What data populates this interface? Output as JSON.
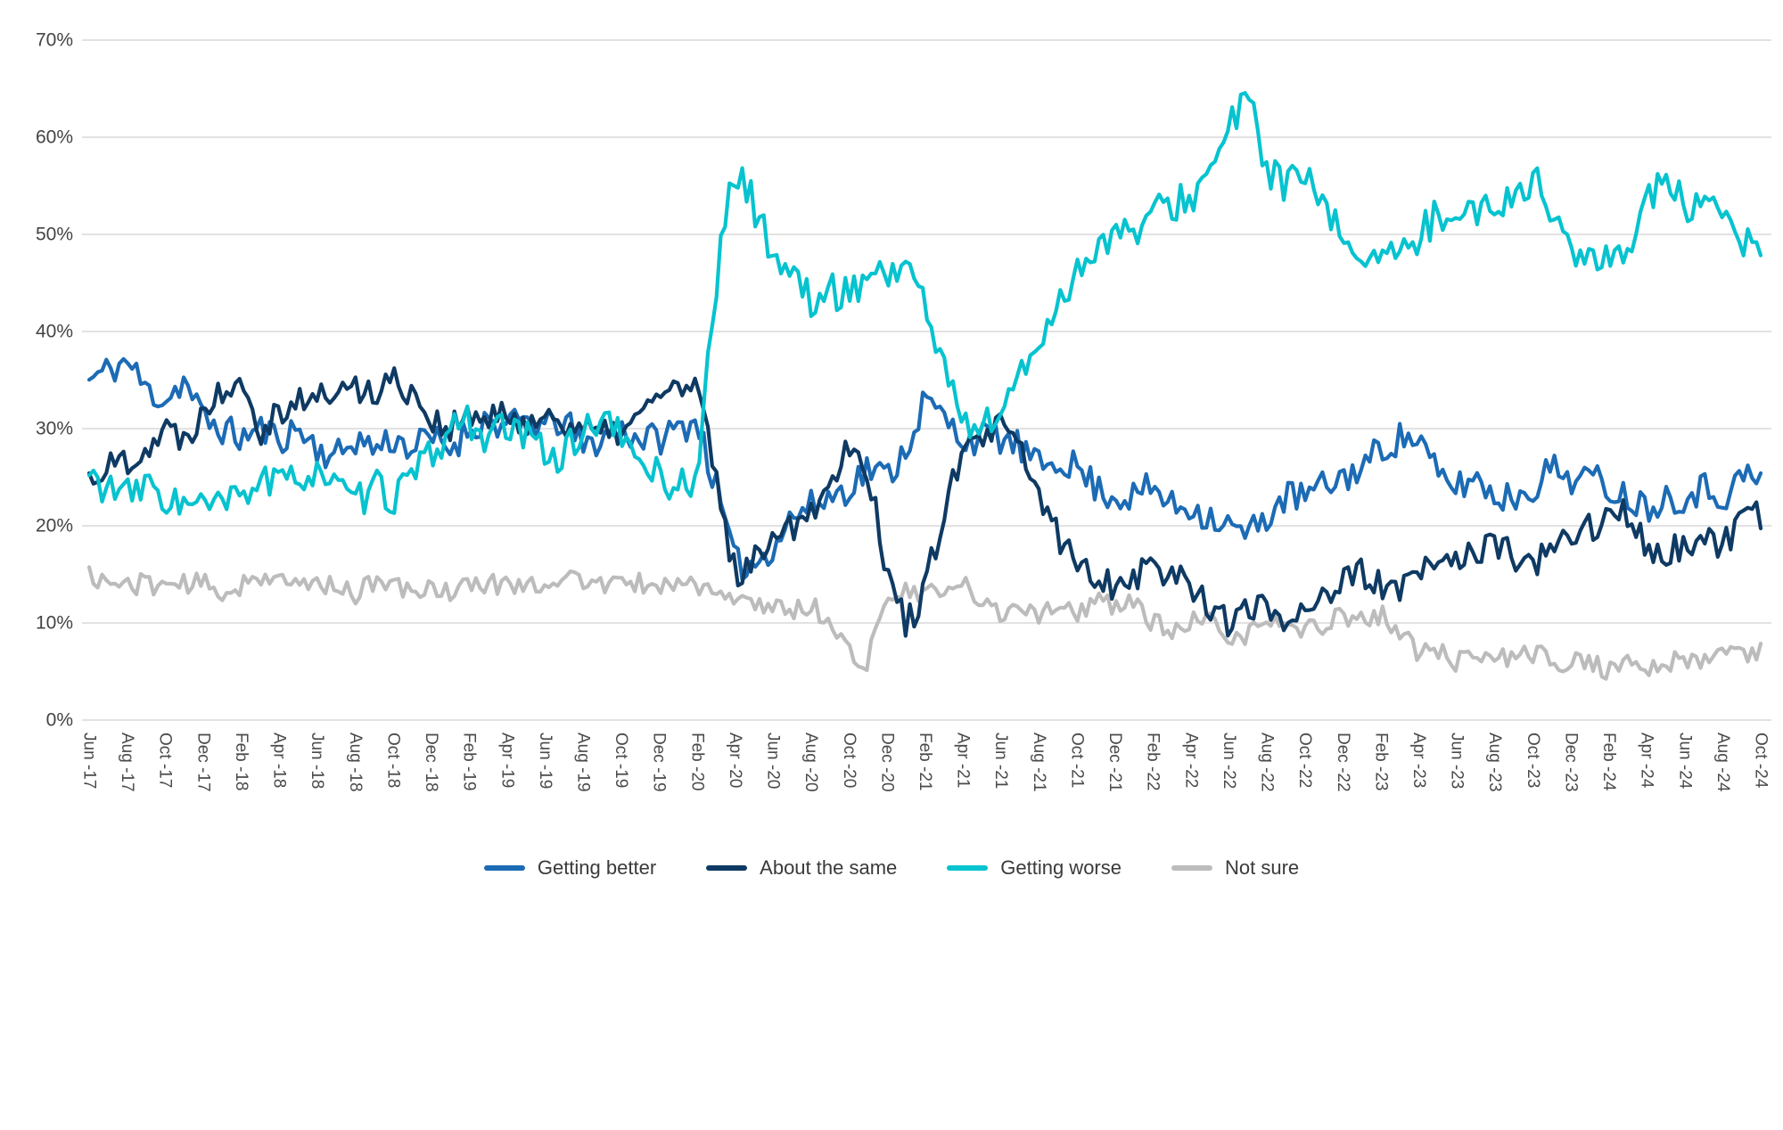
{
  "chart_data": {
    "type": "line",
    "title": "",
    "xlabel": "",
    "ylabel": "",
    "ylim": [
      0,
      70
    ],
    "y_tick_step": 10,
    "y_ticks": [
      "0%",
      "10%",
      "20%",
      "30%",
      "40%",
      "50%",
      "60%",
      "70%"
    ],
    "grid": "horizontal",
    "legend_position": "bottom",
    "x_unit": "month (Jun-2017 to Oct-2024, weekly survey upsampled)",
    "x_tick_labels": [
      "Jun -17",
      "Aug -17",
      "Oct -17",
      "Dec -17",
      "Feb -18",
      "Apr -18",
      "Jun -18",
      "Aug -18",
      "Oct -18",
      "Dec -18",
      "Feb -19",
      "Apr -19",
      "Jun -19",
      "Aug -19",
      "Oct -19",
      "Dec -19",
      "Feb -20",
      "Apr -20",
      "Jun -20",
      "Aug -20",
      "Oct -20",
      "Dec -20",
      "Feb -21",
      "Apr -21",
      "Jun -21",
      "Aug -21",
      "Oct -21",
      "Dec -21",
      "Feb -22",
      "Apr -22",
      "Jun -22",
      "Aug -22",
      "Oct -22",
      "Dec -22",
      "Feb -23",
      "Apr -23",
      "Jun -23",
      "Aug -23",
      "Oct -23",
      "Dec -23",
      "Feb -24",
      "Apr -24",
      "Jun -24",
      "Aug -24",
      "Oct -24"
    ],
    "x_tick_month_step": 2,
    "series": [
      {
        "name": "Getting better",
        "color": "#1c6bb5",
        "jitter": 1.7,
        "seed": 11,
        "monthly_values": [
          35,
          36,
          37,
          34,
          33,
          35,
          31,
          30,
          29,
          30,
          29,
          30,
          28,
          27,
          29,
          28,
          29,
          28,
          29,
          28,
          30,
          31,
          30,
          31,
          30,
          31,
          28,
          29,
          30,
          29,
          29,
          30,
          31,
          24,
          16,
          16,
          18,
          21,
          22,
          23,
          24,
          26,
          25,
          28,
          33,
          31,
          29,
          29,
          29,
          28,
          26,
          27,
          26,
          24,
          23,
          23,
          24,
          22,
          22,
          21,
          20,
          19,
          21,
          23,
          23,
          24,
          25,
          26,
          28,
          29,
          29,
          25,
          24,
          25,
          23,
          23,
          24,
          26,
          25,
          25,
          24,
          23,
          22,
          23,
          23,
          24,
          23,
          25,
          25
        ]
      },
      {
        "name": "About the same",
        "color": "#0e3a63",
        "jitter": 1.7,
        "seed": 22,
        "monthly_values": [
          25,
          26,
          27,
          28,
          30,
          29,
          32,
          34,
          36,
          30,
          32,
          33,
          33,
          34,
          34,
          34,
          35,
          34,
          31,
          30,
          31,
          31,
          31,
          31,
          31,
          31,
          30,
          29,
          30,
          31,
          34,
          34,
          34,
          25,
          15,
          16,
          20,
          20,
          22,
          24,
          29,
          26,
          15,
          10,
          13,
          22,
          27,
          29,
          30,
          28,
          23,
          19,
          16,
          15,
          14,
          15,
          16,
          15,
          14,
          12,
          10,
          11,
          12,
          10,
          12,
          13,
          14,
          15,
          14,
          13,
          15,
          16,
          17,
          17,
          18,
          17,
          16,
          17,
          19,
          20,
          21,
          21,
          18,
          17,
          18,
          18,
          18,
          20,
          21
        ]
      },
      {
        "name": "Getting worse",
        "color": "#06c3cf",
        "jitter": 1.9,
        "seed": 33,
        "monthly_values": [
          25,
          24,
          23,
          24,
          23,
          22,
          22,
          22,
          23,
          25,
          24,
          25,
          26,
          24,
          22,
          24,
          23,
          25,
          27,
          30,
          31,
          29,
          30,
          29,
          28,
          27,
          30,
          31,
          29,
          27,
          25,
          24,
          25,
          45,
          57,
          53,
          48,
          46,
          43,
          44,
          44,
          46,
          46,
          47,
          43,
          36,
          31,
          30,
          32,
          35,
          39,
          43,
          46,
          49,
          50,
          50,
          52,
          53,
          54,
          56,
          61,
          64,
          57,
          55,
          56,
          52,
          50,
          48,
          48,
          47,
          50,
          52,
          53,
          52,
          53,
          54,
          56,
          52,
          49,
          47,
          47,
          49,
          54,
          55,
          53,
          52,
          52,
          49,
          48
        ]
      },
      {
        "name": "Not sure",
        "color": "#bcbcbc",
        "jitter": 1.1,
        "seed": 44,
        "monthly_values": [
          15,
          14,
          14,
          14,
          14,
          14,
          14,
          13,
          14,
          15,
          14,
          14,
          14,
          14,
          13,
          14,
          14,
          13,
          14,
          13,
          14,
          14,
          14,
          14,
          14,
          15,
          14,
          14,
          14,
          14,
          14,
          14,
          14,
          13,
          12,
          12,
          12,
          11,
          12,
          10,
          7,
          6,
          13,
          13,
          13,
          13,
          14,
          12,
          11,
          12,
          11,
          12,
          11,
          12,
          12,
          12,
          10,
          9,
          10,
          10,
          8,
          9,
          10,
          10,
          9,
          10,
          11,
          10,
          11,
          9,
          7,
          7,
          6,
          6,
          7,
          6,
          7,
          6,
          6,
          6,
          5,
          6,
          5,
          6,
          6,
          6,
          7,
          7,
          7
        ]
      }
    ]
  },
  "legend": {
    "items": [
      "Getting better",
      "About the same",
      "Getting worse",
      "Not sure"
    ]
  }
}
